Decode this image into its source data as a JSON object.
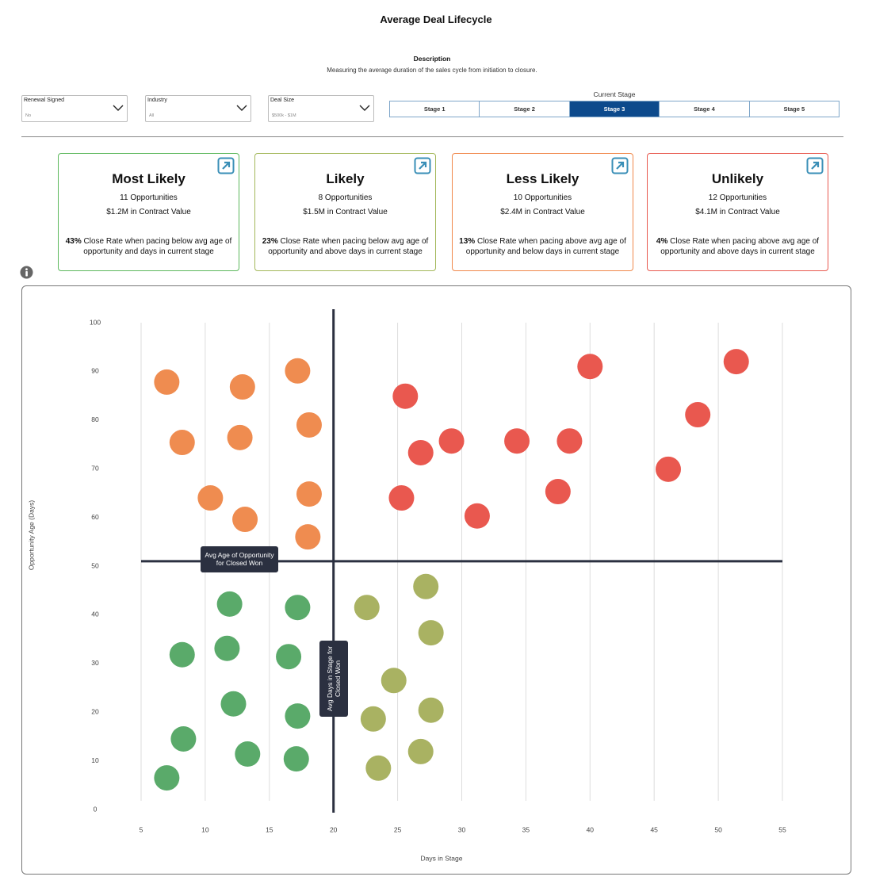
{
  "header": {
    "title": "Average Deal Lifecycle",
    "description_label": "Description",
    "description": "Measuring the average duration of the sales cycle from initiation to closure."
  },
  "filters": [
    {
      "label": "Renewal Signed",
      "value": "No"
    },
    {
      "label": "Industry",
      "value": "All"
    },
    {
      "label": "Deal Size",
      "value": "$500k - $1M"
    }
  ],
  "stage_selector": {
    "label": "Current Stage",
    "stages": [
      "Stage 1",
      "Stage 2",
      "Stage 3",
      "Stage 4",
      "Stage 5"
    ],
    "selected": 2
  },
  "cards": [
    {
      "title": "Most Likely",
      "opportunities": "11 Opportunities",
      "contract_value": "$1.2M in Contract Value",
      "rate": "43%",
      "rate_text": "Close Rate when pacing below avg age of opportunity and days in current stage",
      "color": "#5cb85c"
    },
    {
      "title": "Likely",
      "opportunities": "8 Opportunities",
      "contract_value": "$1.5M in Contract Value",
      "rate": "23%",
      "rate_text": "Close Rate when pacing below avg age of opportunity and above days in current stage",
      "color": "#a3b85a"
    },
    {
      "title": "Less Likely",
      "opportunities": "10 Opportunities",
      "contract_value": "$2.4M in Contract Value",
      "rate": "13%",
      "rate_text": "Close Rate when pacing above avg age of opportunity and below days in current stage",
      "color": "#f0884a"
    },
    {
      "title": "Unlikely",
      "opportunities": "12 Opportunities",
      "contract_value": "$4.1M in Contract Value",
      "rate": "4%",
      "rate_text": "Close Rate when pacing above avg age of opportunity and above days in current stage",
      "color": "#e8594f"
    }
  ],
  "chart_data": {
    "type": "scatter",
    "x_label": "Days in Stage",
    "y_label": "Opportunity Age (Days)",
    "xlim": [
      5,
      55
    ],
    "xticks": [
      5,
      10,
      15,
      20,
      25,
      30,
      35,
      40,
      45,
      50,
      55
    ],
    "ylim": [
      0,
      100
    ],
    "yticks": [
      0,
      10,
      20,
      30,
      40,
      50,
      60,
      70,
      80,
      90,
      100
    ],
    "grid": true,
    "series": [
      {
        "color": "#5aaa6a",
        "x": [
          11.9,
          17.2,
          8.2,
          11.7,
          16.5,
          12.2,
          17.2,
          8.3,
          13.3,
          17.1,
          7.0
        ],
        "values": [
          42.2,
          41.5,
          31.8,
          33.1,
          31.4,
          21.7,
          19.2,
          14.5,
          11.4,
          10.4,
          6.5
        ]
      },
      {
        "color": "#a9b262",
        "x": [
          27.2,
          22.6,
          27.6,
          24.7,
          23.1,
          27.6,
          26.8,
          23.5
        ],
        "values": [
          45.8,
          41.5,
          36.3,
          26.5,
          18.6,
          20.4,
          11.9,
          8.5
        ]
      },
      {
        "color": "#ef8c50",
        "x": [
          7.0,
          12.9,
          17.2,
          8.2,
          12.7,
          18.1,
          10.4,
          13.1,
          18.1,
          18.0
        ],
        "values": [
          87.8,
          86.8,
          90.1,
          75.4,
          76.4,
          79.0,
          64.0,
          59.6,
          64.8,
          56.0
        ]
      },
      {
        "color": "#e9584f",
        "x": [
          25.6,
          26.8,
          29.2,
          34.3,
          38.4,
          40.0,
          51.4,
          48.4,
          46.1,
          37.5,
          31.2,
          25.3
        ],
        "values": [
          84.9,
          73.3,
          75.7,
          75.7,
          75.7,
          91.0,
          92.0,
          81.1,
          69.9,
          65.3,
          60.3,
          64.0
        ]
      }
    ],
    "reference_lines": [
      {
        "axis": "x",
        "value": 20,
        "label": "Avg Days in Stage for Closed Won"
      },
      {
        "axis": "y",
        "value": 51,
        "label": "Avg Age of Opportunity for Closed Won"
      }
    ]
  }
}
